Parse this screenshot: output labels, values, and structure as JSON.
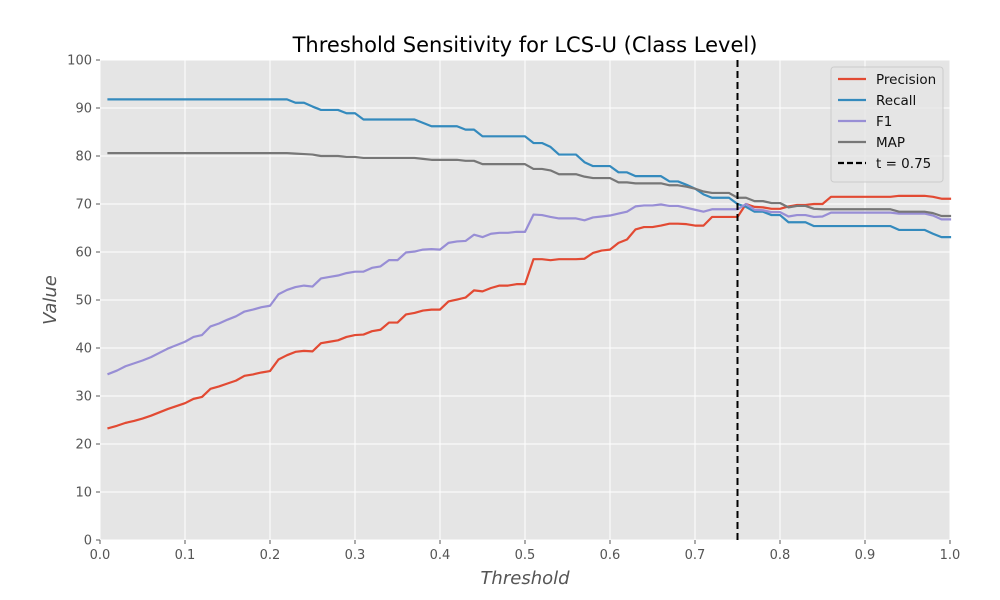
{
  "chart_data": {
    "type": "line",
    "title": "Threshold Sensitivity for LCS-U (Class Level)",
    "xlabel": "Threshold",
    "ylabel": "Value",
    "xlim": [
      0,
      1
    ],
    "ylim": [
      0,
      100
    ],
    "xticks": [
      "0.0",
      "0.1",
      "0.2",
      "0.3",
      "0.4",
      "0.5",
      "0.6",
      "0.7",
      "0.8",
      "0.9",
      "1.0"
    ],
    "yticks": [
      "0",
      "10",
      "20",
      "30",
      "40",
      "50",
      "60",
      "70",
      "80",
      "90",
      "100"
    ],
    "grid": true,
    "legend_position": "top-right",
    "x": [
      0.01,
      0.02,
      0.03,
      0.04,
      0.05,
      0.06,
      0.07,
      0.08,
      0.09,
      0.1,
      0.11,
      0.12,
      0.13,
      0.14,
      0.15,
      0.16,
      0.17,
      0.18,
      0.19,
      0.2,
      0.21,
      0.22,
      0.23,
      0.24,
      0.25,
      0.26,
      0.27,
      0.28,
      0.29,
      0.3,
      0.31,
      0.32,
      0.33,
      0.34,
      0.35,
      0.36,
      0.37,
      0.38,
      0.39,
      0.4,
      0.41,
      0.42,
      0.43,
      0.44,
      0.45,
      0.46,
      0.47,
      0.48,
      0.49,
      0.5,
      0.51,
      0.52,
      0.53,
      0.54,
      0.55,
      0.56,
      0.57,
      0.58,
      0.59,
      0.6,
      0.61,
      0.62,
      0.63,
      0.64,
      0.65,
      0.66,
      0.67,
      0.68,
      0.69,
      0.7,
      0.71,
      0.72,
      0.73,
      0.74,
      0.75,
      0.76,
      0.77,
      0.78,
      0.79,
      0.8,
      0.81,
      0.82,
      0.83,
      0.84,
      0.85,
      0.86,
      0.87,
      0.88,
      0.89,
      0.9,
      0.91,
      0.92,
      0.93,
      0.94,
      0.95,
      0.96,
      0.97,
      0.98,
      0.99,
      1.0
    ],
    "series": [
      {
        "name": "Precision",
        "color": "#e24a33",
        "values": [
          23.3,
          23.8,
          24.4,
          24.8,
          25.3,
          25.9,
          26.6,
          27.3,
          27.9,
          28.5,
          29.4,
          29.8,
          31.5,
          32.0,
          32.6,
          33.2,
          34.2,
          34.5,
          34.9,
          35.2,
          37.6,
          38.5,
          39.2,
          39.4,
          39.3,
          41.0,
          41.3,
          41.6,
          42.3,
          42.7,
          42.8,
          43.5,
          43.8,
          45.3,
          45.3,
          47.0,
          47.3,
          47.8,
          48.0,
          48.0,
          49.7,
          50.1,
          50.5,
          52.0,
          51.8,
          52.5,
          53.0,
          53.0,
          53.3,
          53.3,
          58.5,
          58.5,
          58.3,
          58.5,
          58.5,
          58.5,
          58.6,
          59.8,
          60.3,
          60.5,
          61.9,
          62.6,
          64.7,
          65.2,
          65.2,
          65.5,
          65.9,
          65.9,
          65.8,
          65.5,
          65.5,
          67.3,
          67.3,
          67.3,
          67.3,
          70.0,
          69.4,
          69.3,
          69.0,
          69.0,
          69.5,
          69.8,
          69.8,
          70.0,
          70.0,
          71.5,
          71.5,
          71.5,
          71.5,
          71.5,
          71.5,
          71.5,
          71.5,
          71.7,
          71.7,
          71.7,
          71.7,
          71.5,
          71.1,
          71.1
        ]
      },
      {
        "name": "Recall",
        "color": "#348abd",
        "values": [
          91.8,
          91.8,
          91.8,
          91.8,
          91.8,
          91.8,
          91.8,
          91.8,
          91.8,
          91.8,
          91.8,
          91.8,
          91.8,
          91.8,
          91.8,
          91.8,
          91.8,
          91.8,
          91.8,
          91.8,
          91.8,
          91.8,
          91.1,
          91.1,
          90.3,
          89.6,
          89.6,
          89.6,
          88.9,
          88.9,
          87.6,
          87.6,
          87.6,
          87.6,
          87.6,
          87.6,
          87.6,
          86.9,
          86.2,
          86.2,
          86.2,
          86.2,
          85.5,
          85.5,
          84.1,
          84.1,
          84.1,
          84.1,
          84.1,
          84.1,
          82.7,
          82.7,
          81.9,
          80.3,
          80.3,
          80.3,
          78.7,
          77.9,
          77.9,
          77.9,
          76.6,
          76.6,
          75.8,
          75.8,
          75.8,
          75.8,
          74.7,
          74.7,
          74.0,
          73.2,
          72.0,
          71.3,
          71.3,
          71.3,
          70.0,
          69.4,
          68.4,
          68.4,
          67.7,
          67.7,
          66.2,
          66.2,
          66.2,
          65.4,
          65.4,
          65.4,
          65.4,
          65.4,
          65.4,
          65.4,
          65.4,
          65.4,
          65.4,
          64.6,
          64.6,
          64.6,
          64.6,
          63.8,
          63.1,
          63.1
        ]
      },
      {
        "name": "F1",
        "color": "#988ed5",
        "values": [
          34.6,
          35.3,
          36.2,
          36.8,
          37.4,
          38.1,
          39.0,
          39.9,
          40.6,
          41.3,
          42.3,
          42.7,
          44.5,
          45.1,
          45.9,
          46.6,
          47.6,
          48.0,
          48.5,
          48.8,
          51.2,
          52.1,
          52.7,
          53.0,
          52.8,
          54.5,
          54.8,
          55.1,
          55.6,
          55.9,
          55.9,
          56.7,
          57.0,
          58.3,
          58.3,
          59.9,
          60.1,
          60.5,
          60.6,
          60.5,
          61.9,
          62.2,
          62.3,
          63.6,
          63.1,
          63.8,
          64.0,
          64.0,
          64.2,
          64.2,
          67.8,
          67.7,
          67.3,
          67.0,
          67.0,
          67.0,
          66.6,
          67.2,
          67.4,
          67.6,
          68.0,
          68.4,
          69.5,
          69.7,
          69.7,
          69.9,
          69.6,
          69.6,
          69.2,
          68.8,
          68.4,
          68.9,
          68.9,
          68.9,
          68.9,
          70.0,
          68.8,
          68.7,
          68.3,
          68.3,
          67.4,
          67.7,
          67.7,
          67.3,
          67.4,
          68.2,
          68.2,
          68.2,
          68.2,
          68.2,
          68.2,
          68.2,
          68.2,
          68.0,
          68.0,
          68.0,
          68.0,
          67.6,
          66.8,
          66.8
        ]
      },
      {
        "name": "MAP",
        "color": "#777777",
        "values": [
          80.6,
          80.6,
          80.6,
          80.6,
          80.6,
          80.6,
          80.6,
          80.6,
          80.6,
          80.6,
          80.6,
          80.6,
          80.6,
          80.6,
          80.6,
          80.6,
          80.6,
          80.6,
          80.6,
          80.6,
          80.6,
          80.6,
          80.5,
          80.4,
          80.3,
          80.0,
          80.0,
          80.0,
          79.8,
          79.8,
          79.6,
          79.6,
          79.6,
          79.6,
          79.6,
          79.6,
          79.6,
          79.4,
          79.2,
          79.2,
          79.2,
          79.2,
          79.0,
          79.0,
          78.3,
          78.3,
          78.3,
          78.3,
          78.3,
          78.3,
          77.3,
          77.3,
          77.0,
          76.2,
          76.2,
          76.2,
          75.7,
          75.4,
          75.4,
          75.4,
          74.5,
          74.5,
          74.3,
          74.3,
          74.3,
          74.3,
          73.9,
          73.9,
          73.6,
          73.2,
          72.6,
          72.3,
          72.3,
          72.3,
          71.3,
          71.3,
          70.6,
          70.6,
          70.2,
          70.2,
          69.3,
          69.6,
          69.6,
          69.0,
          68.9,
          68.9,
          68.9,
          68.9,
          68.9,
          68.9,
          68.9,
          68.9,
          68.9,
          68.4,
          68.4,
          68.4,
          68.4,
          68.1,
          67.5,
          67.5
        ]
      }
    ],
    "reference_line": {
      "x": 0.75,
      "label": "t = 0.75",
      "color": "#000000",
      "style": "dashed"
    }
  }
}
